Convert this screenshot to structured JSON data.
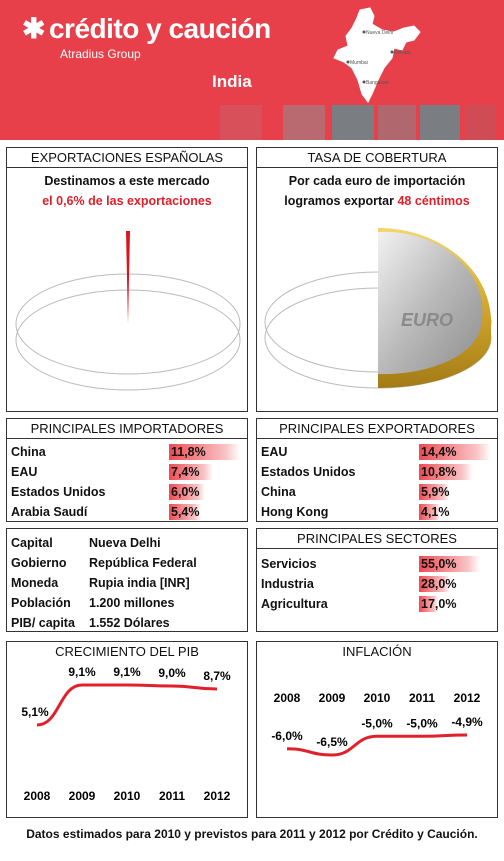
{
  "header": {
    "brand": "crédito y caución",
    "brand_sub": "Atradius Group",
    "country": "India",
    "map_cities": [
      "Nueva Delhi",
      "Kolkata",
      "Mumbai",
      "Bangalore"
    ],
    "accent_color": "#e8404a"
  },
  "exports": {
    "title": "EXPORTACIONES ESPAÑOLAS",
    "line1": "Destinamos a este mercado",
    "line2_prefix": "el ",
    "line2_highlight": "0,6% de las exportaciones",
    "share_percent": 0.6
  },
  "coverage": {
    "title": "TASA DE COBERTURA",
    "line1": "Por cada euro de importación",
    "line2_prefix": "logramos exportar ",
    "line2_highlight": "48 céntimos",
    "coin_text": "EURO"
  },
  "importers": {
    "title": "PRINCIPALES IMPORTADORES",
    "items": [
      {
        "name": "China",
        "value": "11,8%",
        "pct": 11.8
      },
      {
        "name": "EAU",
        "value": "7,4%",
        "pct": 7.4
      },
      {
        "name": "Estados Unidos",
        "value": "6,0%",
        "pct": 6.0
      },
      {
        "name": "Arabia Saudí",
        "value": "5,4%",
        "pct": 5.4
      }
    ]
  },
  "exporters": {
    "title": "PRINCIPALES EXPORTADORES",
    "items": [
      {
        "name": "EAU",
        "value": "14,4%",
        "pct": 14.4
      },
      {
        "name": "Estados Unidos",
        "value": "10,8%",
        "pct": 10.8
      },
      {
        "name": "China",
        "value": "5,9%",
        "pct": 5.9
      },
      {
        "name": "Hong Kong",
        "value": "4,1%",
        "pct": 4.1
      }
    ]
  },
  "info": [
    {
      "label": "Capital",
      "value": "Nueva Delhi"
    },
    {
      "label": "Gobierno",
      "value": "República Federal"
    },
    {
      "label": "Moneda",
      "value": "Rupia india [INR]"
    },
    {
      "label": "Población",
      "value": "1.200 millones"
    },
    {
      "label": "PIB/ capita",
      "value": "1.552 Dólares"
    }
  ],
  "sectors": {
    "title": "PRINCIPALES SECTORES",
    "items": [
      {
        "name": "Servicios",
        "value": "55,0%",
        "pct": 55.0
      },
      {
        "name": "Industria",
        "value": "28,0%",
        "pct": 28.0
      },
      {
        "name": "Agricultura",
        "value": "17,0%",
        "pct": 17.0
      }
    ]
  },
  "chart_data": [
    {
      "type": "line",
      "title": "CRECIMIENTO DEL PIB",
      "categories": [
        "2008",
        "2009",
        "2010",
        "2011",
        "2012"
      ],
      "values": [
        5.1,
        9.1,
        9.1,
        9.0,
        8.7
      ],
      "labels": [
        "5,1%",
        "9,1%",
        "9,1%",
        "9,0%",
        "8,7%"
      ],
      "line_color": "#e0202a"
    },
    {
      "type": "line",
      "title": "INFLACIÓN",
      "categories": [
        "2008",
        "2009",
        "2010",
        "2011",
        "2012"
      ],
      "values": [
        -6.0,
        -6.5,
        -5.0,
        -5.0,
        -4.9
      ],
      "labels": [
        "-6,0%",
        "-6,5%",
        "-5,0%",
        "-5,0%",
        "-4,9%"
      ],
      "line_color": "#e0202a"
    }
  ],
  "footer": "Datos estimados para 2010 y previstos para 2011  y 2012 por Crédito y Caución."
}
